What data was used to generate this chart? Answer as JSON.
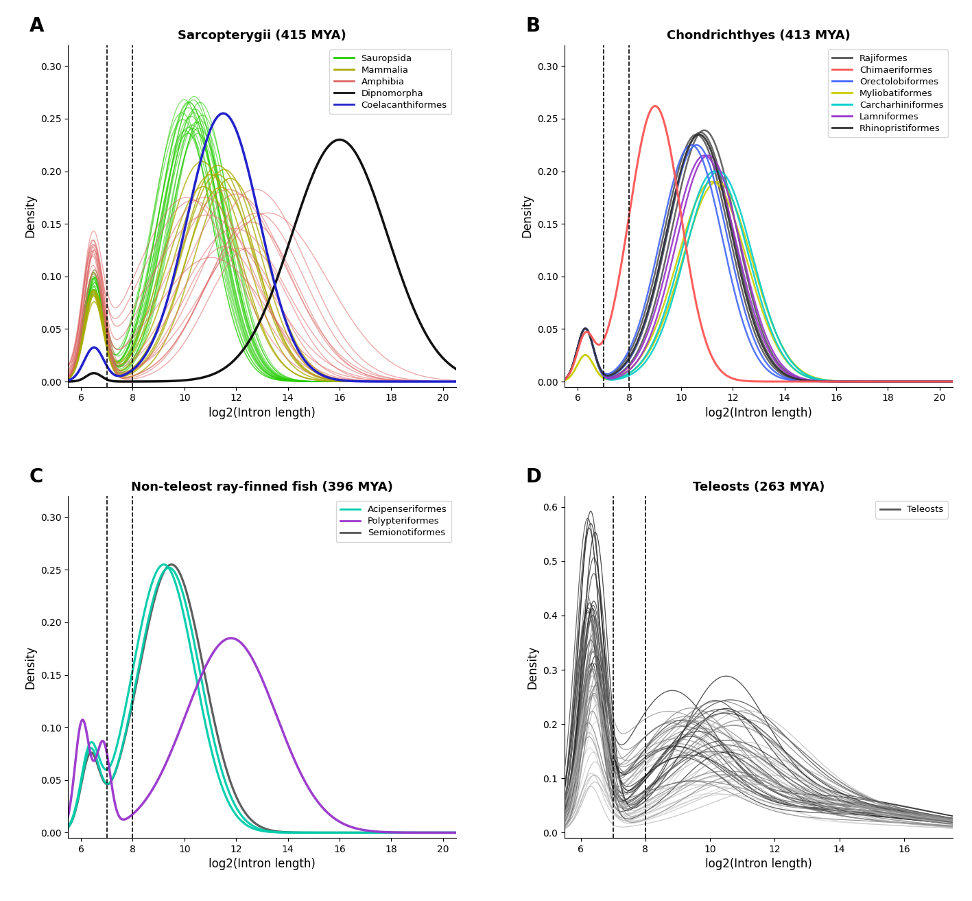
{
  "panel_A": {
    "title": "Sarcopterygii (415 MYA)",
    "xlim": [
      5.5,
      20.5
    ],
    "ylim": [
      -0.005,
      0.32
    ],
    "yticks": [
      0.0,
      0.05,
      0.1,
      0.15,
      0.2,
      0.25,
      0.3
    ],
    "xticks": [
      6,
      8,
      10,
      12,
      14,
      16,
      18,
      20
    ],
    "vlines": [
      7,
      8
    ],
    "legend": [
      "Sauropsida",
      "Mammalia",
      "Amphibia",
      "Dipnomorpha",
      "Coelacanthiformes"
    ],
    "legend_colors": [
      "#22CC00",
      "#AAAA00",
      "#CC4444",
      "#111111",
      "#2222CC"
    ]
  },
  "panel_B": {
    "title": "Chondrichthyes (413 MYA)",
    "xlim": [
      5.5,
      20.5
    ],
    "ylim": [
      -0.005,
      0.32
    ],
    "yticks": [
      0.0,
      0.05,
      0.1,
      0.15,
      0.2,
      0.25,
      0.3
    ],
    "xticks": [
      6,
      8,
      10,
      12,
      14,
      16,
      18,
      20
    ],
    "vlines": [
      7,
      8
    ],
    "legend": [
      "Rajiformes",
      "Chimaeriformes",
      "Orectolobiformes",
      "Myliobatiformes",
      "Carcharhiniformes",
      "Lamniformes",
      "Rhinopristiformes"
    ],
    "legend_colors": [
      "#555555",
      "#FF4444",
      "#4466FF",
      "#CCCC00",
      "#00CCCC",
      "#9933CC",
      "#111111"
    ]
  },
  "panel_C": {
    "title": "Non-teleost ray-finned fish (396 MYA)",
    "xlim": [
      5.5,
      20.5
    ],
    "ylim": [
      -0.005,
      0.32
    ],
    "yticks": [
      0.0,
      0.05,
      0.1,
      0.15,
      0.2,
      0.25,
      0.3
    ],
    "xticks": [
      6,
      8,
      10,
      12,
      14,
      16,
      18,
      20
    ],
    "vlines": [
      7,
      8
    ],
    "legend": [
      "Acipenseriformes",
      "Polypteriformes",
      "Semionotiformes"
    ],
    "legend_colors": [
      "#00CCAA",
      "#9933CC",
      "#555555"
    ]
  },
  "panel_D": {
    "title": "Teleosts (263 MYA)",
    "xlim": [
      5.5,
      17.5
    ],
    "ylim": [
      -0.01,
      0.62
    ],
    "yticks": [
      0.0,
      0.1,
      0.2,
      0.3,
      0.4,
      0.5,
      0.6
    ],
    "xticks": [
      6,
      8,
      10,
      12,
      14,
      16
    ],
    "vlines": [
      7,
      8
    ],
    "legend": [
      "Teleosts"
    ],
    "legend_colors": [
      "#555555"
    ]
  },
  "xlabel": "log2(Intron length)",
  "ylabel": "Density"
}
